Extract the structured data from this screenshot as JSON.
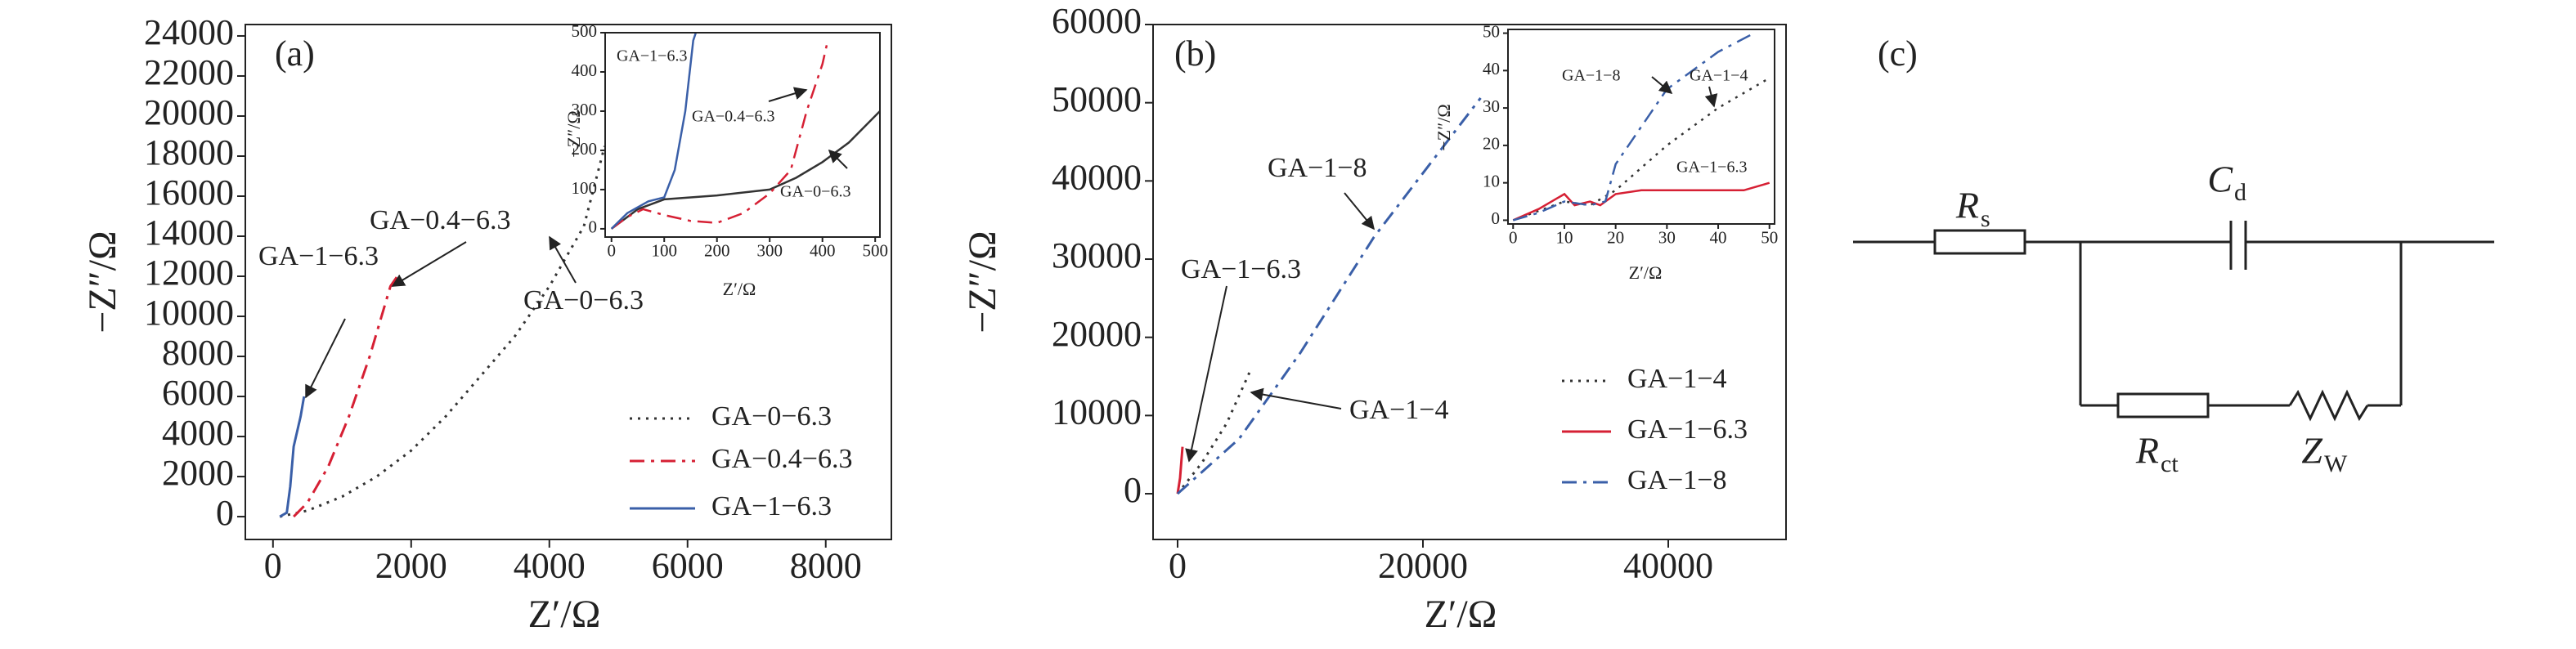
{
  "chart_data": [
    {
      "type": "line",
      "label": "(a)",
      "xlabel": "Z′/Ω",
      "ylabel": "−Z″/Ω",
      "xlim": [
        -400,
        8950
      ],
      "ylim": [
        -1140,
        24570
      ],
      "xticks": [
        0,
        2000,
        4000,
        6000,
        8000
      ],
      "yticks": [
        0,
        2000,
        4000,
        6000,
        8000,
        10000,
        12000,
        14000,
        16000,
        18000,
        20000,
        22000,
        24000
      ],
      "legend": "lower right",
      "series": [
        {
          "name": "GA−0−6.3",
          "color": "#333333",
          "style": "dotted",
          "x": [
            100,
            500,
            1000,
            1500,
            2000,
            2500,
            3000,
            3500,
            4000,
            4500,
            4800
          ],
          "values": [
            0,
            300,
            1000,
            2000,
            3300,
            5000,
            7000,
            9000,
            11500,
            14500,
            18500
          ]
        },
        {
          "name": "GA−0.4−6.3",
          "color": "#d62034",
          "style": "dashdot",
          "x": [
            300,
            500,
            800,
            1100,
            1400,
            1700,
            1800
          ],
          "values": [
            0,
            700,
            2500,
            5000,
            8000,
            11500,
            12000
          ]
        },
        {
          "name": "GA−1−6.3",
          "color": "#3a5fa8",
          "style": "solid",
          "x": [
            100,
            200,
            250,
            300,
            400,
            450
          ],
          "values": [
            0,
            200,
            1500,
            3500,
            5000,
            6000
          ]
        }
      ],
      "annotations": [
        "GA−1−6.3",
        "GA−0.4−6.3",
        "GA−0−6.3"
      ]
    },
    {
      "type": "line",
      "xlabel": "Z′/Ω",
      "ylabel": "−Z″/Ω",
      "xlim": [
        -12,
        509
      ],
      "ylim": [
        -21,
        500
      ],
      "xticks": [
        0,
        100,
        200,
        300,
        400,
        500
      ],
      "yticks": [
        0,
        100,
        200,
        300,
        400,
        500
      ],
      "series": [
        {
          "color": "#333333",
          "style": "solid",
          "x": [
            0,
            50,
            100,
            200,
            300,
            350,
            400,
            450,
            509
          ],
          "values": [
            0,
            50,
            75,
            85,
            100,
            130,
            170,
            220,
            300
          ]
        },
        {
          "color": "#d62034",
          "style": "dashdot",
          "x": [
            0,
            30,
            60,
            100,
            150,
            200,
            250,
            300,
            340,
            370,
            400,
            410
          ],
          "values": [
            0,
            30,
            50,
            35,
            20,
            15,
            40,
            90,
            150,
            300,
            420,
            480
          ]
        },
        {
          "color": "#3a5fa8",
          "style": "solid",
          "x": [
            0,
            30,
            70,
            100,
            120,
            140,
            155,
            160
          ],
          "values": [
            0,
            40,
            70,
            80,
            150,
            300,
            480,
            500
          ]
        }
      ],
      "annotations": [
        "GA−1−6.3",
        "GA−0.4−6.3",
        "GA−0−6.3"
      ]
    },
    {
      "type": "line",
      "label": "(b)",
      "xlabel": "Z′/Ω",
      "ylabel": "−Z″/Ω",
      "xlim": [
        -2000,
        49600
      ],
      "ylim": [
        -5850,
        60000
      ],
      "xticks": [
        0,
        20000,
        40000
      ],
      "yticks": [
        0,
        10000,
        20000,
        30000,
        40000,
        50000,
        60000
      ],
      "legend": "lower right",
      "series": [
        {
          "name": "GA−1−4",
          "color": "#333333",
          "style": "dotted",
          "x": [
            0,
            2000,
            4000,
            6000
          ],
          "values": [
            0,
            4000,
            9000,
            16000
          ]
        },
        {
          "name": "GA−1−6.3",
          "color": "#d62034",
          "style": "solid",
          "x": [
            0,
            200,
            400
          ],
          "values": [
            0,
            2000,
            6000
          ]
        },
        {
          "name": "GA−1−8",
          "color": "#3a5fa8",
          "style": "dashdot",
          "x": [
            0,
            5000,
            10000,
            16000,
            20000,
            24700
          ],
          "values": [
            0,
            7000,
            18000,
            32800,
            41000,
            50600
          ]
        }
      ],
      "annotations": [
        "GA−1−8",
        "GA−1−6.3",
        "GA−1−4"
      ]
    },
    {
      "type": "line",
      "xlabel": "Z′/Ω",
      "ylabel": "−Z″/Ω",
      "xlim": [
        -1,
        51
      ],
      "ylim": [
        -1,
        51
      ],
      "xticks": [
        0,
        10,
        20,
        30,
        40,
        50
      ],
      "yticks": [
        0,
        10,
        20,
        30,
        40,
        50
      ],
      "series": [
        {
          "color": "#333333",
          "style": "dotted",
          "x": [
            0,
            10,
            15,
            20,
            30,
            40,
            50
          ],
          "values": [
            0,
            5,
            4,
            8,
            20,
            30,
            38
          ]
        },
        {
          "color": "#d62034",
          "style": "solid",
          "x": [
            0,
            5,
            10,
            12,
            15,
            17,
            20,
            25,
            35,
            45,
            50
          ],
          "values": [
            0,
            3,
            7,
            4,
            5,
            4,
            7,
            8,
            8,
            8,
            10
          ]
        },
        {
          "color": "#3a5fa8",
          "style": "dashdot",
          "x": [
            0,
            5,
            10,
            15,
            18,
            20,
            25,
            30,
            40,
            47
          ],
          "values": [
            0,
            2,
            5,
            4,
            5,
            15,
            25,
            35,
            45,
            50
          ]
        }
      ],
      "annotations": [
        "GA−1−8",
        "GA−1−4",
        "GA−1−6.3"
      ]
    }
  ],
  "diagram": {
    "label": "(c)",
    "elements": [
      {
        "symbol": "R",
        "sub": "s"
      },
      {
        "symbol": "C",
        "sub": "d"
      },
      {
        "symbol": "R",
        "sub": "ct"
      },
      {
        "symbol": "Z",
        "sub": "W"
      }
    ]
  }
}
